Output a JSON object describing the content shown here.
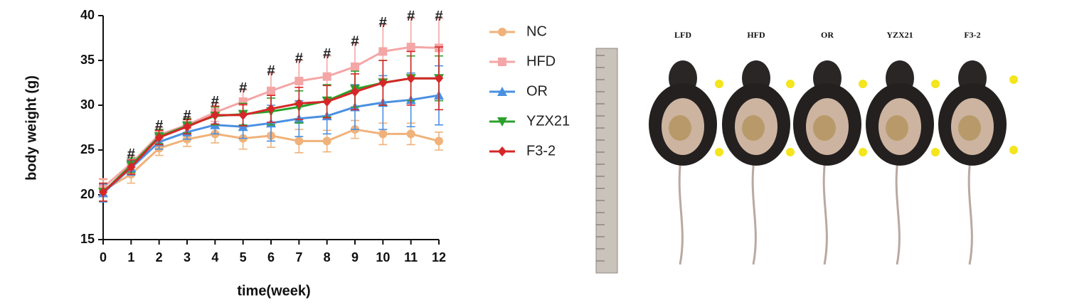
{
  "chart_data": {
    "type": "line",
    "x_label": "time(week)",
    "y_label": "body weight (g)",
    "x": [
      0,
      1,
      2,
      3,
      4,
      5,
      6,
      7,
      8,
      9,
      10,
      11,
      12
    ],
    "xlim": [
      0,
      12
    ],
    "xticks": [
      0,
      1,
      2,
      3,
      4,
      5,
      6,
      7,
      8,
      9,
      10,
      11,
      12
    ],
    "ylim": [
      15,
      40
    ],
    "yticks": [
      15,
      20,
      25,
      30,
      35,
      40
    ],
    "series": [
      {
        "name": "NC",
        "color": "#f0b27a",
        "marker": "circle",
        "values": [
          20.5,
          22.3,
          25.2,
          26.2,
          26.8,
          26.3,
          26.6,
          26.0,
          26.0,
          27.3,
          26.8,
          26.8,
          26.0
        ],
        "errors": [
          1.2,
          1.0,
          0.8,
          0.8,
          1.0,
          1.2,
          1.3,
          1.3,
          1.2,
          1.0,
          1.2,
          1.2,
          1.0
        ]
      },
      {
        "name": "HFD",
        "color": "#f4a6a6",
        "marker": "square",
        "values": [
          20.8,
          23.5,
          26.7,
          27.8,
          29.2,
          30.4,
          31.6,
          32.7,
          33.2,
          34.3,
          36.0,
          36.5,
          36.4
        ],
        "errors": [
          1.0,
          0.8,
          0.8,
          0.8,
          1.0,
          1.3,
          2.0,
          2.3,
          2.3,
          2.6,
          3.0,
          3.2,
          3.3
        ]
      },
      {
        "name": "OR",
        "color": "#4a90e2",
        "marker": "triangle-up",
        "values": [
          20.2,
          23.0,
          25.9,
          27.0,
          27.8,
          27.6,
          28.0,
          28.5,
          28.8,
          29.8,
          30.3,
          30.6,
          31.1
        ],
        "errors": [
          1.0,
          0.8,
          0.8,
          0.8,
          1.0,
          1.3,
          2.0,
          2.0,
          2.0,
          2.5,
          3.0,
          3.0,
          3.3
        ]
      },
      {
        "name": "YZX21",
        "color": "#2ca02c",
        "marker": "triangle-down",
        "values": [
          20.3,
          23.3,
          26.5,
          27.7,
          28.8,
          29.0,
          29.3,
          29.8,
          30.5,
          31.8,
          32.5,
          33.0,
          33.0
        ],
        "errors": [
          1.0,
          0.8,
          0.8,
          0.8,
          1.0,
          1.2,
          1.5,
          1.8,
          1.8,
          2.0,
          2.5,
          2.5,
          2.5
        ]
      },
      {
        "name": "F3-2",
        "color": "#d62728",
        "marker": "diamond",
        "values": [
          20.3,
          23.1,
          26.4,
          27.6,
          28.9,
          28.9,
          29.6,
          30.2,
          30.4,
          31.5,
          32.5,
          33.0,
          33.0
        ],
        "errors": [
          1.0,
          0.8,
          0.8,
          0.8,
          1.0,
          1.2,
          1.5,
          1.8,
          1.8,
          2.0,
          2.5,
          3.0,
          3.5
        ]
      }
    ],
    "annotations": [
      {
        "x": 1,
        "text": "#"
      },
      {
        "x": 2,
        "text": "#"
      },
      {
        "x": 3,
        "text": "#"
      },
      {
        "x": 4,
        "text": "#"
      },
      {
        "x": 5,
        "text": "#"
      },
      {
        "x": 6,
        "text": "#"
      },
      {
        "x": 7,
        "text": "#"
      },
      {
        "x": 8,
        "text": "#"
      },
      {
        "x": 9,
        "text": "#"
      },
      {
        "x": 10,
        "text": "#"
      },
      {
        "x": 11,
        "text": "#"
      },
      {
        "x": 12,
        "text": "#"
      }
    ],
    "annotation_series": 1
  },
  "photo": {
    "labels": [
      "LFD",
      "HFD",
      "OR",
      "YZX21",
      "F3-2"
    ]
  }
}
